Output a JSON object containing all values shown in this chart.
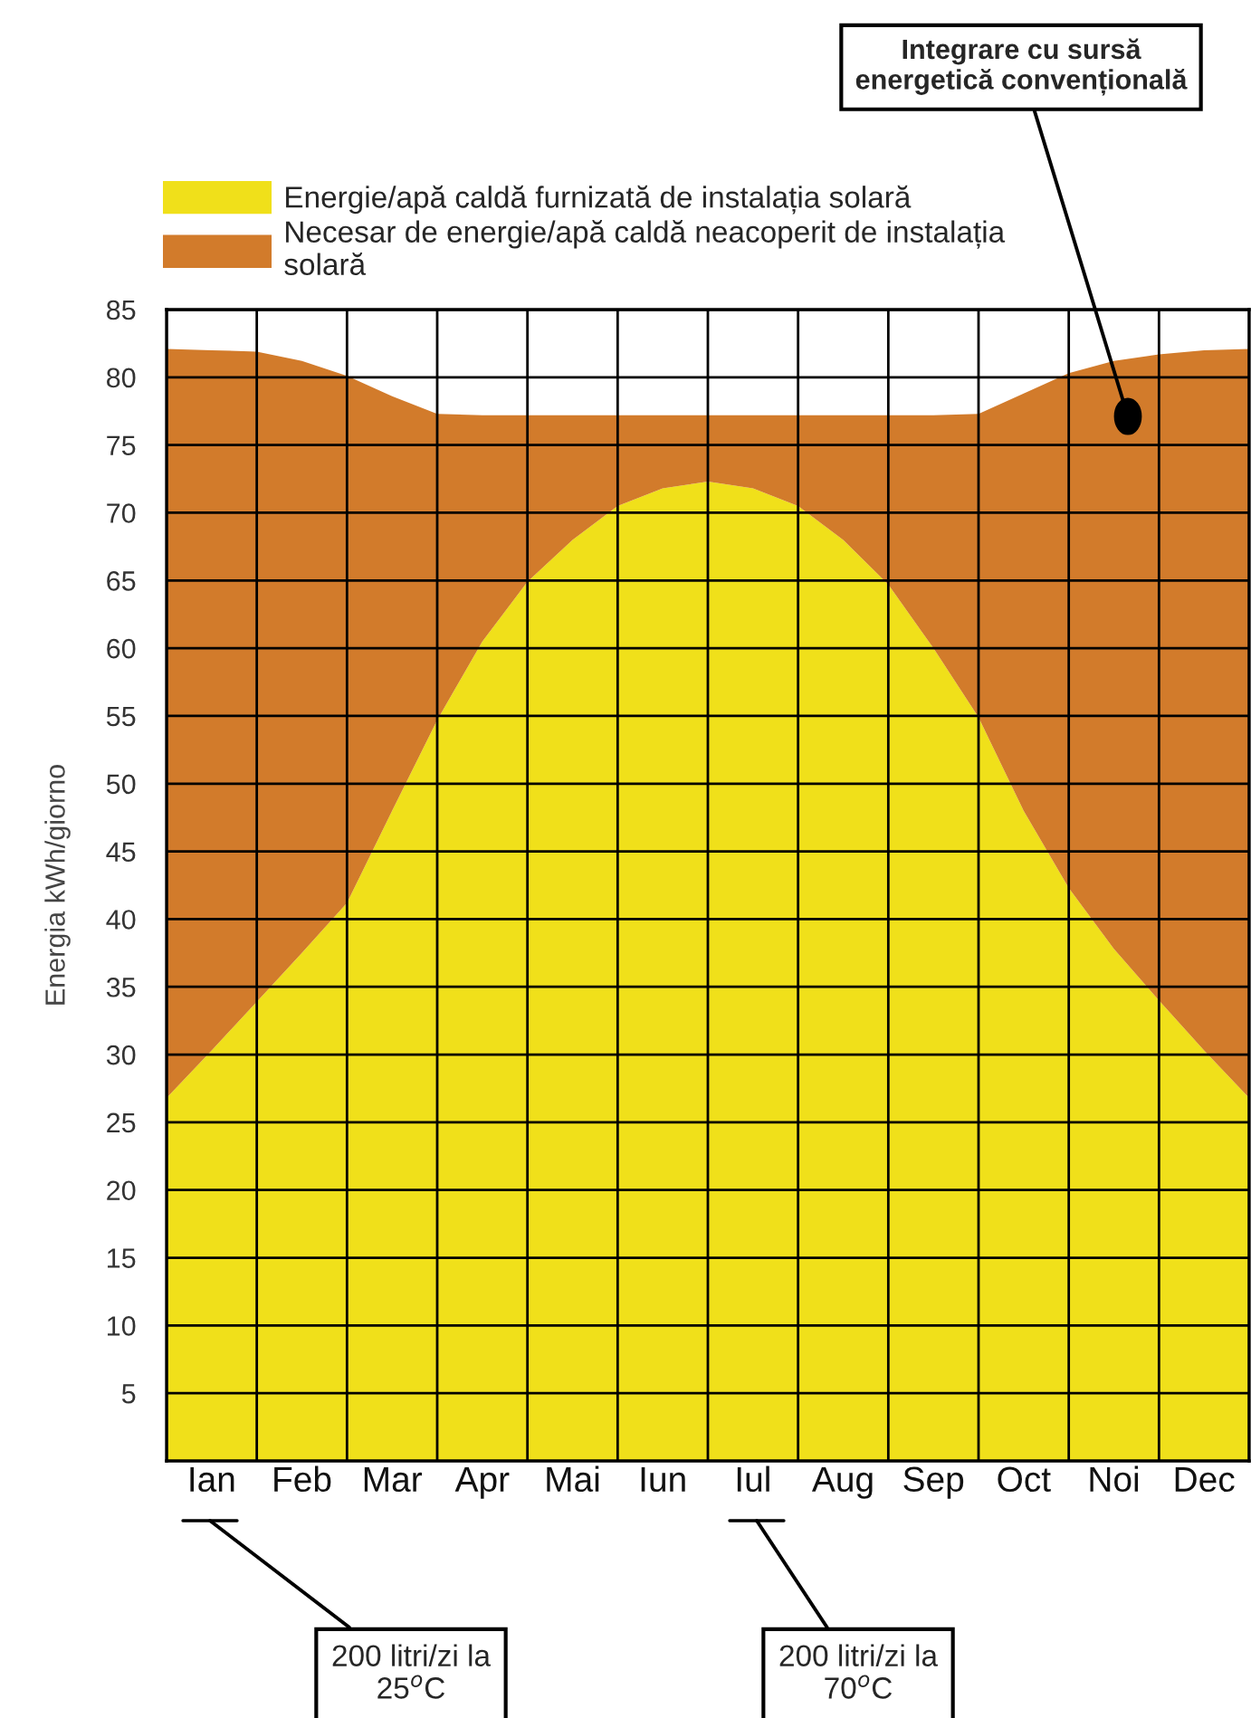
{
  "chart_data": {
    "type": "area",
    "stacked": true,
    "categories": [
      null,
      "Ian",
      null,
      "Feb",
      null,
      "Mar",
      null,
      "Apr",
      null,
      "Mai",
      null,
      "Iun",
      null,
      "Iul",
      null,
      "Aug",
      null,
      "Sep",
      null,
      "Oct",
      null,
      "Noi",
      null,
      "Dec",
      null
    ],
    "series": [
      {
        "name": "Energie/apă caldă furnizată de instalația solară",
        "color": "#f0e01a",
        "values": [
          26.8,
          30.3,
          33.9,
          37.5,
          41.2,
          48.0,
          54.7,
          60.5,
          64.9,
          68.0,
          70.5,
          71.8,
          72.3,
          71.8,
          70.5,
          68.0,
          64.7,
          60.0,
          54.9,
          48.0,
          42.3,
          37.8,
          34.0,
          30.3,
          26.8
        ]
      },
      {
        "name": "Necesar de energie/apă caldă neacoperit de instalația\nsolară",
        "color": "#d27b2b",
        "values": [
          55.3,
          51.7,
          48.0,
          43.7,
          38.9,
          30.6,
          22.6,
          16.7,
          12.3,
          9.2,
          6.7,
          5.4,
          4.9,
          5.4,
          6.7,
          9.2,
          12.5,
          17.2,
          22.4,
          30.8,
          38.0,
          43.4,
          47.7,
          51.7,
          55.3
        ]
      }
    ],
    "ylim": [
      0,
      85
    ],
    "yticks": [
      5,
      10,
      15,
      20,
      25,
      30,
      35,
      40,
      45,
      50,
      55,
      60,
      65,
      70,
      75,
      80,
      85
    ],
    "ylabel": "Energia kWh/giorno",
    "grid": true,
    "legend": "top left",
    "annotations": [
      "Integrare cu sursă\nenergetică convențională",
      "200 litri/zi la\n25$^{o}$C",
      "200 litri/zi la\n70$^{o}$C"
    ]
  }
}
